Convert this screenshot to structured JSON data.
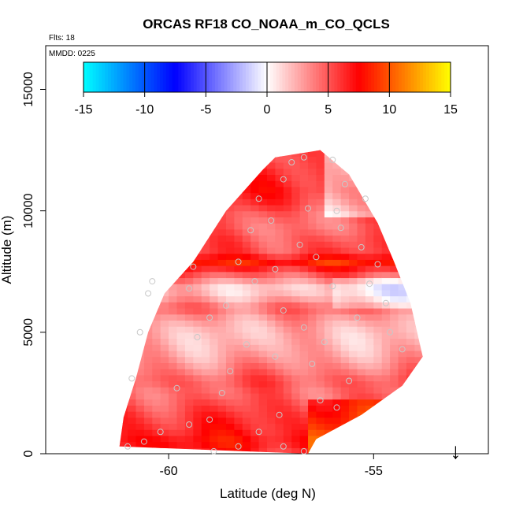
{
  "chart_data": {
    "type": "heatmap",
    "title": "ORCAS RF18 CO_NOAA_m_CO_QCLS",
    "flights_label": "Flts: 18",
    "date_label": "MMDD: 0225",
    "xlabel": "Latitude (deg N)",
    "ylabel": "Altitude (m)",
    "xlim": [
      -63,
      -52.2
    ],
    "ylim": [
      0,
      16800
    ],
    "x_ticks": [
      -60,
      -55
    ],
    "x_tick_labels": [
      "-60",
      "-55"
    ],
    "y_ticks": [
      0,
      5000,
      10000,
      15000
    ],
    "y_tick_labels": [
      "0",
      "5000",
      "10000",
      "15000"
    ],
    "colorbar": {
      "min": -15,
      "max": 15,
      "ticks": [
        -15,
        -10,
        -5,
        0,
        5,
        10,
        15
      ],
      "tick_labels": [
        "-15",
        "-10",
        "-5",
        "0",
        "5",
        "10",
        "15"
      ],
      "colors": [
        "#00FFFF",
        "#0000FF",
        "#FFFFFF",
        "#FF0000",
        "#FFFF00"
      ]
    },
    "envelope_left": [
      [
        -61.2,
        300
      ],
      [
        -61.1,
        1500
      ],
      [
        -60.8,
        3100
      ],
      [
        -60.5,
        5000
      ],
      [
        -60.1,
        6600
      ],
      [
        -59.4,
        7900
      ],
      [
        -58.6,
        10000
      ],
      [
        -57.7,
        11700
      ],
      [
        -57.4,
        12200
      ]
    ],
    "envelope_right": [
      [
        -56.3,
        12500
      ],
      [
        -55.6,
        11500
      ],
      [
        -54.9,
        9500
      ],
      [
        -54.5,
        7900
      ],
      [
        -54.1,
        6200
      ],
      [
        -53.8,
        4000
      ],
      [
        -54.3,
        2800
      ],
      [
        -55.3,
        1600
      ],
      [
        -56.4,
        600
      ],
      [
        -56.6,
        0
      ]
    ],
    "layers": [
      {
        "z": 0,
        "v": 6.5
      },
      {
        "z": 500,
        "v": 7.5
      },
      {
        "z": 1000,
        "v": 6.5
      },
      {
        "z": 1500,
        "v": 6.0
      },
      {
        "z": 2000,
        "v": 5.2
      },
      {
        "z": 2500,
        "v": 4.5
      },
      {
        "z": 3000,
        "v": 5.0
      },
      {
        "z": 3500,
        "v": 3.8
      },
      {
        "z": 4000,
        "v": 2.8
      },
      {
        "z": 4500,
        "v": 2.2
      },
      {
        "z": 5000,
        "v": 2.0
      },
      {
        "z": 5500,
        "v": 2.8
      },
      {
        "z": 6000,
        "v": 4.5
      },
      {
        "z": 6400,
        "v": 2.5
      },
      {
        "z": 6800,
        "v": 1.2
      },
      {
        "z": 7100,
        "v": 3.0
      },
      {
        "z": 7500,
        "v": 5.5
      },
      {
        "z": 7900,
        "v": 8.5
      },
      {
        "z": 8300,
        "v": 5.5
      },
      {
        "z": 8800,
        "v": 5.0
      },
      {
        "z": 9300,
        "v": 4.2
      },
      {
        "z": 9800,
        "v": 4.5
      },
      {
        "z": 10300,
        "v": 5.8
      },
      {
        "z": 10800,
        "v": 6.5
      },
      {
        "z": 11300,
        "v": 6.0
      },
      {
        "z": 11800,
        "v": 5.5
      },
      {
        "z": 12300,
        "v": 5.0
      }
    ],
    "samples": [
      [
        -61.0,
        300
      ],
      [
        -60.6,
        500
      ],
      [
        -60.2,
        900
      ],
      [
        -59.5,
        1200
      ],
      [
        -59.0,
        1400
      ],
      [
        -58.3,
        300
      ],
      [
        -57.8,
        900
      ],
      [
        -57.2,
        300
      ],
      [
        -56.7,
        100
      ],
      [
        -58.9,
        100
      ],
      [
        -60.9,
        3100
      ],
      [
        -59.8,
        2700
      ],
      [
        -58.7,
        2500
      ],
      [
        -57.3,
        1600
      ],
      [
        -56.3,
        2200
      ],
      [
        -55.9,
        1900
      ],
      [
        -56.5,
        3700
      ],
      [
        -57.4,
        4000
      ],
      [
        -60.7,
        5000
      ],
      [
        -59.3,
        4800
      ],
      [
        -58.1,
        4500
      ],
      [
        -56.7,
        5200
      ],
      [
        -55.4,
        5600
      ],
      [
        -54.6,
        5000
      ],
      [
        -54.3,
        4300
      ],
      [
        -54.7,
        6200
      ],
      [
        -60.5,
        6600
      ],
      [
        -60.4,
        7100
      ],
      [
        -59.5,
        6800
      ],
      [
        -58.6,
        6100
      ],
      [
        -57.2,
        5900
      ],
      [
        -56.0,
        6900
      ],
      [
        -55.1,
        7000
      ],
      [
        -54.9,
        7800
      ],
      [
        -59.4,
        7700
      ],
      [
        -58.3,
        7900
      ],
      [
        -57.4,
        7600
      ],
      [
        -56.4,
        8100
      ],
      [
        -55.3,
        8500
      ],
      [
        -58.0,
        9200
      ],
      [
        -57.5,
        9600
      ],
      [
        -57.8,
        10500
      ],
      [
        -56.6,
        10100
      ],
      [
        -55.9,
        10000
      ],
      [
        -55.2,
        10500
      ],
      [
        -55.7,
        11100
      ],
      [
        -57.2,
        11300
      ],
      [
        -56.7,
        12200
      ],
      [
        -56.0,
        12100
      ],
      [
        -57.0,
        12000
      ],
      [
        -56.8,
        8600
      ],
      [
        -55.8,
        9300
      ],
      [
        -57.9,
        7100
      ],
      [
        -59.0,
        5600
      ],
      [
        -55.6,
        3000
      ],
      [
        -56.2,
        4600
      ],
      [
        -58.5,
        3400
      ]
    ],
    "marker": {
      "x": -53.0,
      "label": "↓"
    }
  }
}
